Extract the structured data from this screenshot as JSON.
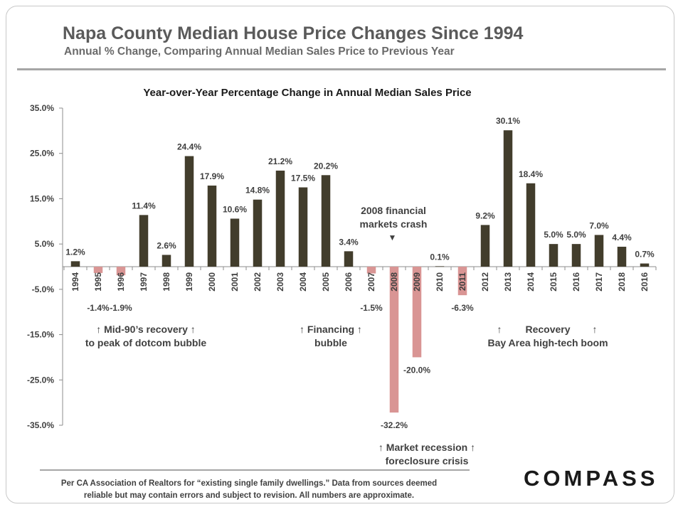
{
  "header": {
    "title": "Napa County Median House Price Changes Since 1994",
    "subtitle": "Annual % Change, Comparing Annual Median Sales Price to Previous Year"
  },
  "chart_data": {
    "type": "bar",
    "title": "Year-over-Year Percentage Change in Annual Median Sales Price",
    "xlabel": "",
    "ylabel": "",
    "ylim": [
      -35,
      35
    ],
    "yticks": [
      35,
      25,
      15,
      5,
      -5,
      -15,
      -25,
      -35
    ],
    "ytick_labels": [
      "35.0%",
      "25.0%",
      "15.0%",
      "5.0%",
      "-5.0%",
      "-15.0%",
      "-25.0%",
      "-35.0%"
    ],
    "grid": false,
    "legend": "none",
    "categories": [
      "1994",
      "1995",
      "1996",
      "1997",
      "1998",
      "1999",
      "2000",
      "2001",
      "2002",
      "2003",
      "2004",
      "2005",
      "2006",
      "2007",
      "2008",
      "2009",
      "2010",
      "2011",
      "2012",
      "2013",
      "2014",
      "2015",
      "2016",
      "2017",
      "2018",
      "2016"
    ],
    "values": [
      1.2,
      -1.4,
      -1.9,
      11.4,
      2.6,
      24.4,
      17.9,
      10.6,
      14.8,
      21.2,
      17.5,
      20.2,
      3.4,
      -1.5,
      -32.2,
      -20.0,
      0.1,
      -6.3,
      9.2,
      30.1,
      18.4,
      5.0,
      5.0,
      7.0,
      4.4,
      0.7
    ],
    "data_labels": [
      "1.2%",
      "-1.4%",
      "-1.9%",
      "11.4%",
      "2.6%",
      "24.4%",
      "17.9%",
      "10.6%",
      "14.8%",
      "21.2%",
      "17.5%",
      "20.2%",
      "3.4%",
      "-1.5%",
      "-32.2%",
      "-20.0%",
      "0.1%",
      "-6.3%",
      "9.2%",
      "30.1%",
      "18.4%",
      "5.0%",
      "5.0%",
      "7.0%",
      "4.4%",
      "0.7%"
    ],
    "colors": {
      "positive": "#423d2c",
      "negative": "#d99594",
      "axis": "#8c8c8c"
    }
  },
  "annotations": {
    "mid90s_line1": "↑ Mid-90’s recovery ↑",
    "mid90s_line2": "to peak of dotcom bubble",
    "financing_line1": "↑ Financing ↑",
    "financing_line2": "bubble",
    "crash_line1": "2008 financial",
    "crash_line2": "markets crash",
    "crash_marker": "▼",
    "recovery_arrow_left": "↑",
    "recovery_label": "Recovery",
    "recovery_arrow_right": "↑",
    "recovery_line2": "Bay Area high-tech boom",
    "recession_line1": "↑ Market recession ↑",
    "recession_line2": "foreclosure crisis"
  },
  "footer": {
    "note_line1": "Per CA Association  of Realtors for “existing single family dwellings.” Data from sources deemed",
    "note_line2": "reliable but may contain errors and subject to revision.  All numbers are approximate.",
    "logo": "COMPASS"
  }
}
